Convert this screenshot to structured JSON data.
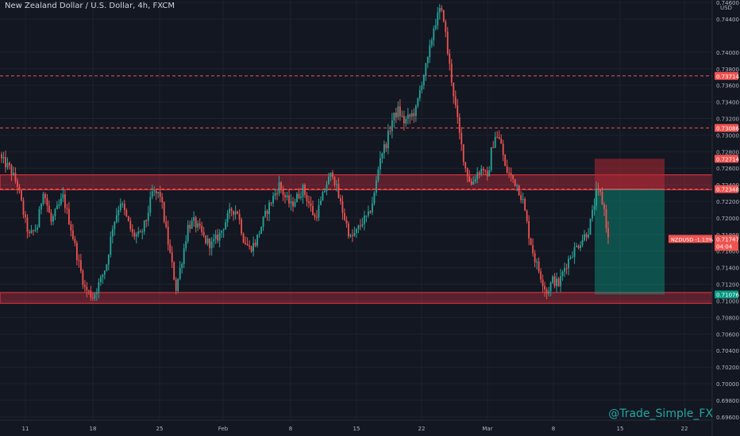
{
  "header": {
    "symbol_name": "New Zealand Dollar / U.S. Dollar",
    "timeframe": "4h",
    "exchange": "FXCM"
  },
  "watermark": "@Trade_Simple_FX",
  "colors": {
    "background": "#131722",
    "grid": "#1e222d",
    "up": "#26a69a",
    "down": "#ef5350",
    "axis_text": "#b2b5be",
    "zone_fill": "#f23645",
    "target_fill": "#089981",
    "stop_fill": "#b22833"
  },
  "chart_data": {
    "type": "candlestick",
    "symbol": "NZDUSD",
    "price_scale_label": "USD",
    "y_ticks": [
      "0.74600",
      "0.74400",
      "0.74000",
      "0.73800",
      "0.73600",
      "0.73400",
      "0.73200",
      "0.73000",
      "0.72800",
      "0.72600",
      "0.72400",
      "0.72200",
      "0.72000",
      "0.71800",
      "0.71600",
      "0.71400",
      "0.71200",
      "0.71000",
      "0.70800",
      "0.70600",
      "0.70400",
      "0.70200",
      "0.70000",
      "0.69800",
      "0.69600"
    ],
    "x_ticks": [
      "11",
      "18",
      "25",
      "Feb",
      "8",
      "15",
      "22",
      "Mar",
      "8",
      "15",
      "22"
    ],
    "ylim": [
      0.6956,
      0.7463
    ],
    "horizontal_lines": [
      {
        "label": "0.73714",
        "value": 0.73714,
        "style": "dashed"
      },
      {
        "label": "0.73086",
        "value": 0.73086,
        "style": "dashed"
      },
      {
        "label": "0.72348",
        "value": 0.72348,
        "style": "dashed"
      }
    ],
    "zones": [
      {
        "from": 0.7234,
        "to": 0.7252
      },
      {
        "from": 0.7097,
        "to": 0.711
      }
    ],
    "position": {
      "type": "short",
      "stop_label": "0.72714",
      "stop": 0.72714,
      "entry": 0.72348,
      "target_label": "0.71076",
      "target": 0.71076
    },
    "current_price": {
      "label": "NZDUSD -1.13%",
      "value": "0.71747",
      "countdown": "04:04"
    },
    "anchors": [
      [
        0,
        0.727
      ],
      [
        4,
        0.726
      ],
      [
        8,
        0.724
      ],
      [
        12,
        0.7195
      ],
      [
        14,
        0.7178
      ],
      [
        18,
        0.719
      ],
      [
        21,
        0.7235
      ],
      [
        25,
        0.7195
      ],
      [
        28,
        0.721
      ],
      [
        31,
        0.7225
      ],
      [
        35,
        0.7188
      ],
      [
        38,
        0.7155
      ],
      [
        42,
        0.7115
      ],
      [
        46,
        0.7105
      ],
      [
        50,
        0.7125
      ],
      [
        53,
        0.7145
      ],
      [
        56,
        0.719
      ],
      [
        60,
        0.722
      ],
      [
        63,
        0.72
      ],
      [
        66,
        0.718
      ],
      [
        70,
        0.7178
      ],
      [
        73,
        0.7198
      ],
      [
        76,
        0.723
      ],
      [
        80,
        0.7228
      ],
      [
        84,
        0.717
      ],
      [
        88,
        0.7115
      ],
      [
        91,
        0.715
      ],
      [
        94,
        0.719
      ],
      [
        97,
        0.7195
      ],
      [
        100,
        0.7185
      ],
      [
        103,
        0.7172
      ],
      [
        106,
        0.7168
      ],
      [
        110,
        0.718
      ],
      [
        113,
        0.7196
      ],
      [
        116,
        0.721
      ],
      [
        119,
        0.7208
      ],
      [
        122,
        0.7175
      ],
      [
        125,
        0.7163
      ],
      [
        128,
        0.717
      ],
      [
        131,
        0.719
      ],
      [
        134,
        0.721
      ],
      [
        137,
        0.7225
      ],
      [
        140,
        0.724
      ],
      [
        143,
        0.7225
      ],
      [
        146,
        0.7215
      ],
      [
        149,
        0.7225
      ],
      [
        152,
        0.7235
      ],
      [
        155,
        0.7218
      ],
      [
        158,
        0.72
      ],
      [
        161,
        0.7218
      ],
      [
        164,
        0.7242
      ],
      [
        167,
        0.7255
      ],
      [
        170,
        0.7225
      ],
      [
        173,
        0.72
      ],
      [
        176,
        0.7175
      ],
      [
        179,
        0.7183
      ],
      [
        182,
        0.7196
      ],
      [
        185,
        0.7202
      ],
      [
        188,
        0.7228
      ],
      [
        191,
        0.7275
      ],
      [
        194,
        0.729
      ],
      [
        197,
        0.7318
      ],
      [
        200,
        0.733
      ],
      [
        203,
        0.7316
      ],
      [
        206,
        0.7322
      ],
      [
        209,
        0.733
      ],
      [
        212,
        0.7365
      ],
      [
        215,
        0.739
      ],
      [
        218,
        0.743
      ],
      [
        221,
        0.745
      ],
      [
        223,
        0.7442
      ],
      [
        225,
        0.74
      ],
      [
        228,
        0.735
      ],
      [
        231,
        0.73
      ],
      [
        234,
        0.726
      ],
      [
        237,
        0.724
      ],
      [
        240,
        0.7255
      ],
      [
        243,
        0.726
      ],
      [
        245,
        0.7245
      ],
      [
        247,
        0.728
      ],
      [
        249,
        0.73
      ],
      [
        252,
        0.729
      ],
      [
        254,
        0.726
      ],
      [
        257,
        0.725
      ],
      [
        260,
        0.724
      ],
      [
        263,
        0.722
      ],
      [
        266,
        0.718
      ],
      [
        269,
        0.715
      ],
      [
        272,
        0.713
      ],
      [
        275,
        0.711
      ],
      [
        278,
        0.7125
      ],
      [
        281,
        0.712
      ],
      [
        284,
        0.714
      ],
      [
        287,
        0.7155
      ],
      [
        290,
        0.7165
      ],
      [
        293,
        0.7175
      ],
      [
        296,
        0.7185
      ],
      [
        298,
        0.7205
      ],
      [
        300,
        0.723
      ],
      [
        302,
        0.7228
      ],
      [
        304,
        0.721
      ],
      [
        306,
        0.7174
      ]
    ]
  }
}
